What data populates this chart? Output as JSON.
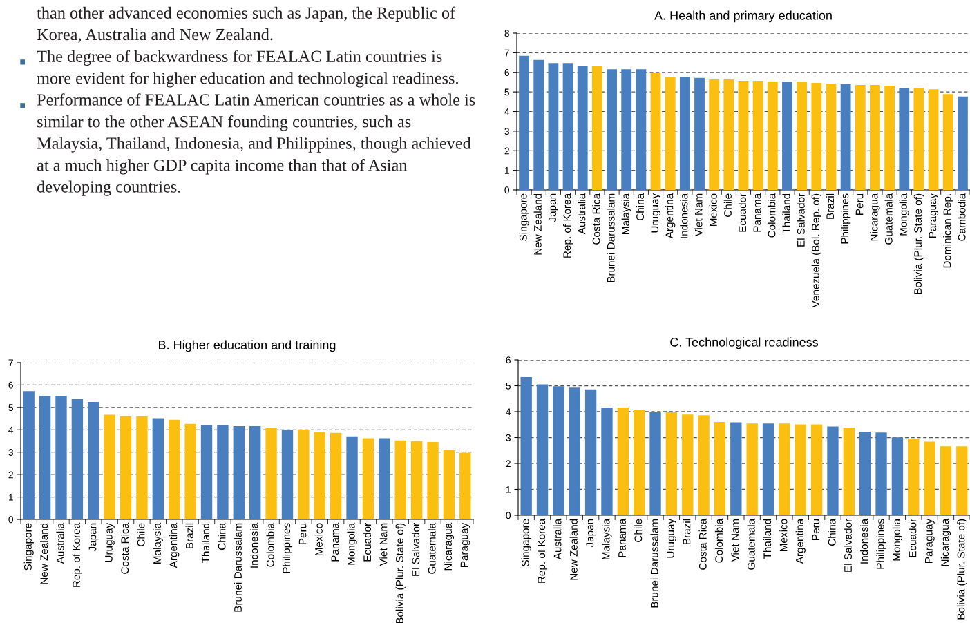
{
  "chart_data": [
    {
      "type": "other",
      "annotations": [
        "than other advanced economies such as Japan, the Republic of Korea, Australia and New Zealand.",
        "The degree of backwardness for FEALAC Latin countries is more evident for higher education and technological readiness.",
        "Performance of FEALAC Latin American countries as a whole is similar to the other ASEAN founding countries, such as Malaysia, Thailand, Indonesia, and Philippines, though achieved at a much higher GDP capita income than that of Asian developing countries."
      ]
    },
    {
      "type": "bar",
      "title": "A. Health and primary education",
      "categories": [
        "Singapore",
        "New Zealand",
        "Japan",
        "Rep. of Korea",
        "Australia",
        "Costa Rica",
        "Brunei Darussalam",
        "Malaysia",
        "China",
        "Uruguay",
        "Argentina",
        "Indonesia",
        "Viet Nam",
        "Mexico",
        "Chile",
        "Ecuador",
        "Panama",
        "Colombia",
        "Thailand",
        "El Salvador",
        "Venezuela (Bol. Rep. of)",
        "Brazil",
        "Philippines",
        "Peru",
        "Nicaragua",
        "Guatemala",
        "Mongolia",
        "Bolivia (Plur. State of)",
        "Paraguay",
        "Dominican Rep.",
        "Cambodia"
      ],
      "values": [
        6.85,
        6.63,
        6.48,
        6.48,
        6.31,
        6.31,
        6.16,
        6.16,
        6.16,
        5.99,
        5.78,
        5.78,
        5.72,
        5.64,
        5.64,
        5.57,
        5.57,
        5.53,
        5.52,
        5.52,
        5.46,
        5.43,
        5.4,
        5.36,
        5.36,
        5.32,
        5.2,
        5.21,
        5.14,
        4.89,
        4.77
      ],
      "colors": [
        "#4a7fbf",
        "#4a7fbf",
        "#4a7fbf",
        "#4a7fbf",
        "#4a7fbf",
        "#fbbf12",
        "#4a7fbf",
        "#4a7fbf",
        "#4a7fbf",
        "#fbbf12",
        "#fbbf12",
        "#4a7fbf",
        "#4a7fbf",
        "#fbbf12",
        "#fbbf12",
        "#fbbf12",
        "#fbbf12",
        "#fbbf12",
        "#4a7fbf",
        "#fbbf12",
        "#fbbf12",
        "#fbbf12",
        "#4a7fbf",
        "#fbbf12",
        "#fbbf12",
        "#fbbf12",
        "#4a7fbf",
        "#fbbf12",
        "#fbbf12",
        "#fbbf12",
        "#4a7fbf"
      ],
      "ylim": [
        0,
        8
      ],
      "yticks": [
        0,
        1,
        2,
        3,
        4,
        5,
        6,
        7,
        8
      ],
      "grid": "y"
    },
    {
      "type": "bar",
      "title": "B. Higher education and training",
      "categories": [
        "Singapore",
        "New Zealand",
        "Australia",
        "Rep. of Korea",
        "Japan",
        "Uruguay",
        "Costa Rica",
        "Chile",
        "Malaysia",
        "Argentina",
        "Brazil",
        "Thailand",
        "China",
        "Brunei Darussalam",
        "Indonesia",
        "Colombia",
        "Philippines",
        "Peru",
        "Mexico",
        "Panama",
        "Mongolia",
        "Ecuador",
        "Viet Nam",
        "Bolivia (Plur. State of)",
        "El Salvador",
        "Guatemala",
        "Nicaragua",
        "Paraguay"
      ],
      "values": [
        5.73,
        5.51,
        5.51,
        5.38,
        5.24,
        4.67,
        4.6,
        4.6,
        4.52,
        4.45,
        4.26,
        4.2,
        4.2,
        4.16,
        4.16,
        4.08,
        4.0,
        4.01,
        3.9,
        3.86,
        3.71,
        3.62,
        3.62,
        3.52,
        3.49,
        3.45,
        3.11,
        2.97
      ],
      "colors": [
        "#4a7fbf",
        "#4a7fbf",
        "#4a7fbf",
        "#4a7fbf",
        "#4a7fbf",
        "#fbbf12",
        "#fbbf12",
        "#fbbf12",
        "#4a7fbf",
        "#fbbf12",
        "#fbbf12",
        "#4a7fbf",
        "#4a7fbf",
        "#4a7fbf",
        "#4a7fbf",
        "#fbbf12",
        "#4a7fbf",
        "#fbbf12",
        "#fbbf12",
        "#fbbf12",
        "#4a7fbf",
        "#fbbf12",
        "#4a7fbf",
        "#fbbf12",
        "#fbbf12",
        "#fbbf12",
        "#fbbf12",
        "#fbbf12"
      ],
      "ylim": [
        0,
        7
      ],
      "yticks": [
        0,
        1,
        2,
        3,
        4,
        5,
        6,
        7
      ],
      "grid": "y"
    },
    {
      "type": "bar",
      "title": "C. Technological readiness",
      "categories": [
        "Singapore",
        "Rep. of Korea",
        "Australia",
        "New Zealand",
        "Japan",
        "Malaysia",
        "Panama",
        "Chile",
        "Brunei Darussalam",
        "Uruguay",
        "Brazil",
        "Costa Rica",
        "Colombia",
        "Viet Nam",
        "Guatemala",
        "Thailand",
        "Mexico",
        "Argentina",
        "Peru",
        "China",
        "El Salvador",
        "Indonesia",
        "Philippines",
        "Mongolia",
        "Ecuador",
        "Paraguay",
        "Nicaragua",
        "Bolivia (Plur. State of)"
      ],
      "values": [
        5.33,
        5.05,
        4.98,
        4.93,
        4.86,
        4.16,
        4.16,
        4.08,
        3.97,
        3.97,
        3.89,
        3.86,
        3.6,
        3.59,
        3.54,
        3.54,
        3.54,
        3.51,
        3.51,
        3.43,
        3.38,
        3.23,
        3.19,
        3.01,
        2.96,
        2.84,
        2.66,
        2.66
      ],
      "colors": [
        "#4a7fbf",
        "#4a7fbf",
        "#4a7fbf",
        "#4a7fbf",
        "#4a7fbf",
        "#4a7fbf",
        "#fbbf12",
        "#fbbf12",
        "#4a7fbf",
        "#fbbf12",
        "#fbbf12",
        "#fbbf12",
        "#fbbf12",
        "#4a7fbf",
        "#fbbf12",
        "#4a7fbf",
        "#fbbf12",
        "#fbbf12",
        "#fbbf12",
        "#4a7fbf",
        "#fbbf12",
        "#4a7fbf",
        "#4a7fbf",
        "#4a7fbf",
        "#fbbf12",
        "#fbbf12",
        "#fbbf12",
        "#fbbf12"
      ],
      "ylim": [
        0,
        6
      ],
      "yticks": [
        0,
        1,
        2,
        3,
        4,
        5,
        6
      ],
      "grid": "y"
    }
  ]
}
